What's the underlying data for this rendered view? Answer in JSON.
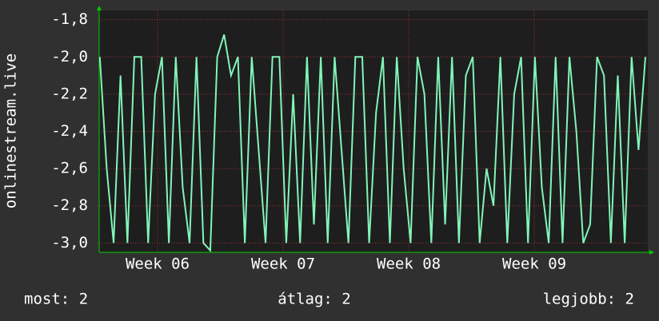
{
  "chart_data": {
    "type": "line",
    "y_label": "onlinestream.live",
    "color": "#80f5b8",
    "grid": true,
    "xlim": [
      5.535,
      9.904
    ],
    "xticks": [
      {
        "value": 6,
        "label": "Week 06"
      },
      {
        "value": 7,
        "label": "Week 07"
      },
      {
        "value": 8,
        "label": "Week 08"
      },
      {
        "value": 9,
        "label": "Week 09"
      }
    ],
    "ylim": [
      -3.05,
      -1.75
    ],
    "yticks": [
      {
        "value": -1.8,
        "label": "-1,8"
      },
      {
        "value": -2,
        "label": "-2,0"
      },
      {
        "value": -2.2,
        "label": "-2,2"
      },
      {
        "value": -2.4,
        "label": "-2,4"
      },
      {
        "value": -2.6,
        "label": "-2,6"
      },
      {
        "value": -2.8,
        "label": "-2,8"
      },
      {
        "value": -3,
        "label": "-3,0"
      }
    ],
    "x": [
      5.54,
      5.595,
      5.65,
      5.705,
      5.76,
      5.815,
      5.87,
      5.925,
      5.98,
      6.035,
      6.09,
      6.145,
      6.2,
      6.255,
      6.31,
      6.365,
      6.42,
      6.475,
      6.53,
      6.585,
      6.64,
      6.695,
      6.75,
      6.805,
      6.86,
      6.915,
      6.97,
      7.025,
      7.08,
      7.135,
      7.19,
      7.245,
      7.3,
      7.355,
      7.41,
      7.465,
      7.52,
      7.575,
      7.63,
      7.685,
      7.74,
      7.795,
      7.85,
      7.905,
      7.96,
      8.015,
      8.07,
      8.125,
      8.18,
      8.235,
      8.29,
      8.345,
      8.4,
      8.455,
      8.51,
      8.565,
      8.62,
      8.675,
      8.73,
      8.785,
      8.84,
      8.895,
      8.95,
      9.005,
      9.06,
      9.115,
      9.17,
      9.225,
      9.28,
      9.335,
      9.39,
      9.445,
      9.5,
      9.555,
      9.61,
      9.665,
      9.72,
      9.775,
      9.83,
      9.885
    ],
    "values": [
      -2,
      -2.6,
      -3,
      -2.1,
      -3,
      -2,
      -2,
      -3,
      -2.2,
      -2,
      -3,
      -2,
      -2.7,
      -3,
      -2,
      -3,
      -3.04,
      -2,
      -1.88,
      -2.1,
      -2,
      -3,
      -2,
      -2.5,
      -3,
      -2,
      -2,
      -3,
      -2.2,
      -3,
      -2,
      -2.9,
      -2,
      -3,
      -2,
      -2.5,
      -3,
      -2,
      -2,
      -3,
      -2.3,
      -2,
      -3,
      -2,
      -2.6,
      -3,
      -2,
      -2.2,
      -3,
      -2,
      -2.9,
      -2,
      -3,
      -2.1,
      -2,
      -3,
      -2.6,
      -2.8,
      -2,
      -3,
      -2.2,
      -2,
      -3,
      -2,
      -2.7,
      -3,
      -2,
      -3,
      -2,
      -2.4,
      -3,
      -2.9,
      -2,
      -2.1,
      -3,
      -2.1,
      -3,
      -2,
      -2.5,
      -2
    ],
    "summary": [
      "most: 2",
      "átlag: 2",
      "legjobb: 2"
    ]
  }
}
